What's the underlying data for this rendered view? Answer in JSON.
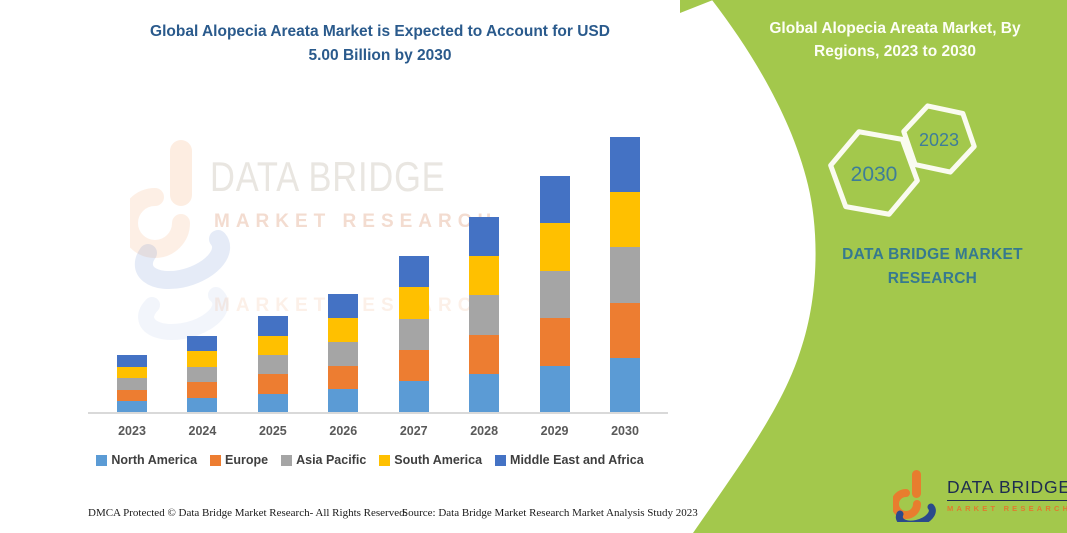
{
  "colors": {
    "title_blue": "#2A5A8C",
    "panel_green": "#A3C84C",
    "teal": "#36798F",
    "hex_text_teal": "#3E7D98",
    "axis_gray": "#D9D9D9",
    "xlabel_gray": "#595959",
    "legend_text": "#3F3F3F",
    "logo_navy": "#1E2D50",
    "logo_orange": "#E87D2E",
    "logo_blue": "#2B4A8B"
  },
  "header": {
    "title_lines": [
      "Global Alopecia Areata Market is Expected to Account for USD",
      "5.00 Billion by 2030"
    ]
  },
  "chart_data": {
    "type": "bar",
    "stacked": true,
    "unit": "USD Billion",
    "title": "Global Alopecia Areata Market is Expected to Account for USD 5.00 Billion by 2030",
    "xlabel": "",
    "ylabel": "",
    "ylim": [
      0,
      5.2
    ],
    "grid": false,
    "legend_position": "bottom",
    "categories": [
      "2023",
      "2024",
      "2025",
      "2026",
      "2027",
      "2028",
      "2029",
      "2030"
    ],
    "series": [
      {
        "name": "North America",
        "color": "#5B9BD5",
        "values": [
          0.21,
          0.28,
          0.35,
          0.43,
          0.57,
          0.71,
          0.86,
          1.0
        ]
      },
      {
        "name": "Europe",
        "color": "#ED7D31",
        "values": [
          0.21,
          0.28,
          0.35,
          0.43,
          0.57,
          0.71,
          0.86,
          1.0
        ]
      },
      {
        "name": "Asia Pacific",
        "color": "#A5A5A5",
        "values": [
          0.21,
          0.28,
          0.35,
          0.43,
          0.57,
          0.71,
          0.86,
          1.0
        ]
      },
      {
        "name": "South America",
        "color": "#FFC000",
        "values": [
          0.21,
          0.28,
          0.35,
          0.43,
          0.57,
          0.71,
          0.86,
          1.0
        ]
      },
      {
        "name": "Middle East and Africa",
        "color": "#4472C4",
        "values": [
          0.21,
          0.28,
          0.35,
          0.43,
          0.57,
          0.71,
          0.86,
          1.0
        ]
      }
    ],
    "totals": [
      1.05,
      1.4,
      1.75,
      2.15,
      2.85,
      3.55,
      4.3,
      5.0
    ]
  },
  "watermark": {
    "line1": "DATA BRIDGE",
    "line2": "MARKET RESEARCH"
  },
  "right_panel": {
    "heading_lines": [
      "Global Alopecia Areata Market, By",
      "Regions, 2023 to 2030"
    ],
    "hex_large_label": "2030",
    "hex_small_label": "2023",
    "brand_lines": [
      "DATA BRIDGE MARKET",
      "RESEARCH"
    ],
    "logo": {
      "title": "DATA BRIDGE",
      "subtitle": "MARKET RESEARCH"
    }
  },
  "footer": {
    "dmca": "DMCA Protected © Data Bridge Market Research-  All Rights Reserved.",
    "source": "Source: Data Bridge Market Research  Market Analysis Study 2023"
  }
}
